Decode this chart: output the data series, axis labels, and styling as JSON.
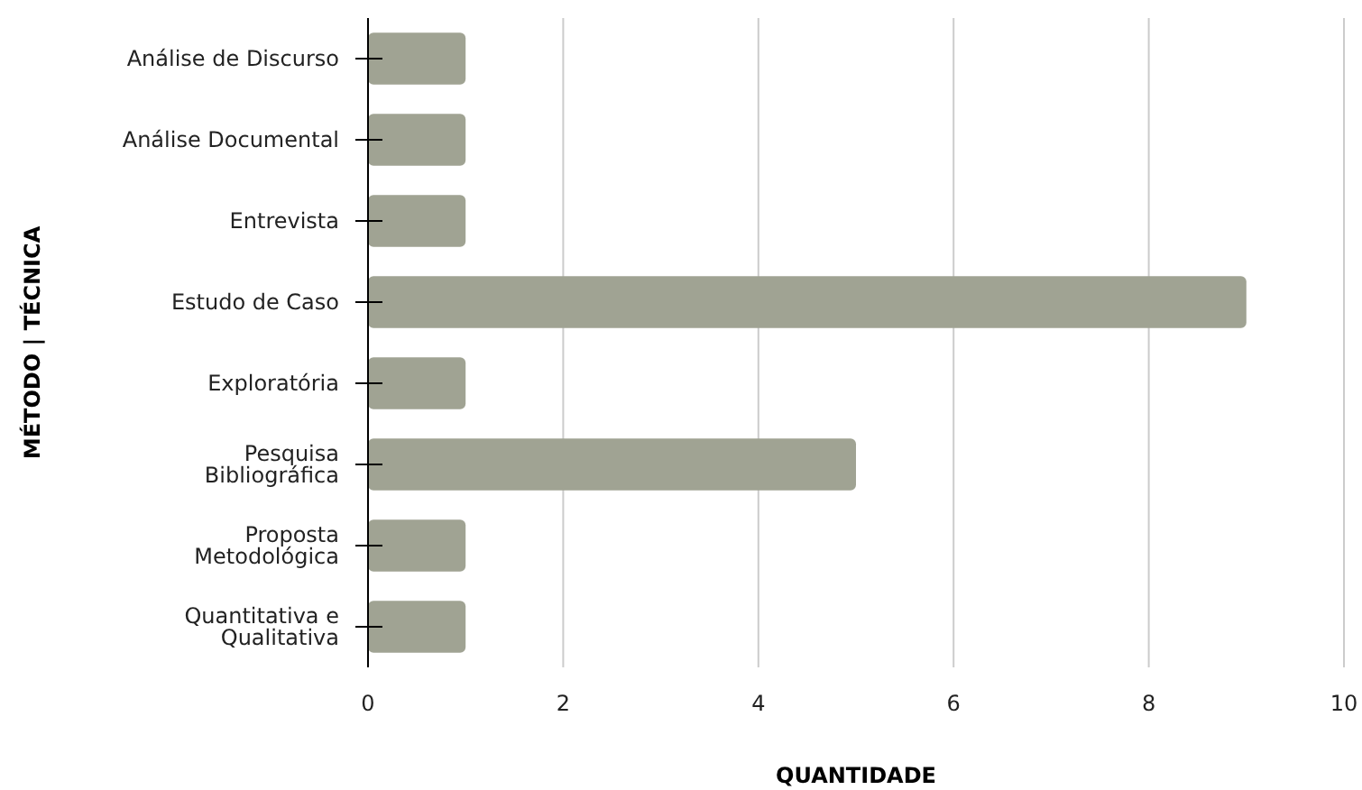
{
  "chart_data": {
    "type": "bar",
    "orientation": "horizontal",
    "xlabel": "QUANTIDADE",
    "ylabel": "MÉTODO | TÉCNICA",
    "categories": [
      "Análise de Discurso",
      "Análise Documental",
      "Entrevista",
      "Estudo de Caso",
      "Exploratória",
      "Pesquisa Bibliográfica",
      "Proposta Metodológica",
      "Quantitativa e Qualitativa"
    ],
    "values": [
      1,
      1,
      1,
      9,
      1,
      5,
      1,
      1
    ],
    "color": "#a0a393",
    "xlim": [
      0,
      10
    ],
    "xticks": [
      0,
      2,
      4,
      6,
      8,
      10
    ],
    "grid": "x"
  }
}
